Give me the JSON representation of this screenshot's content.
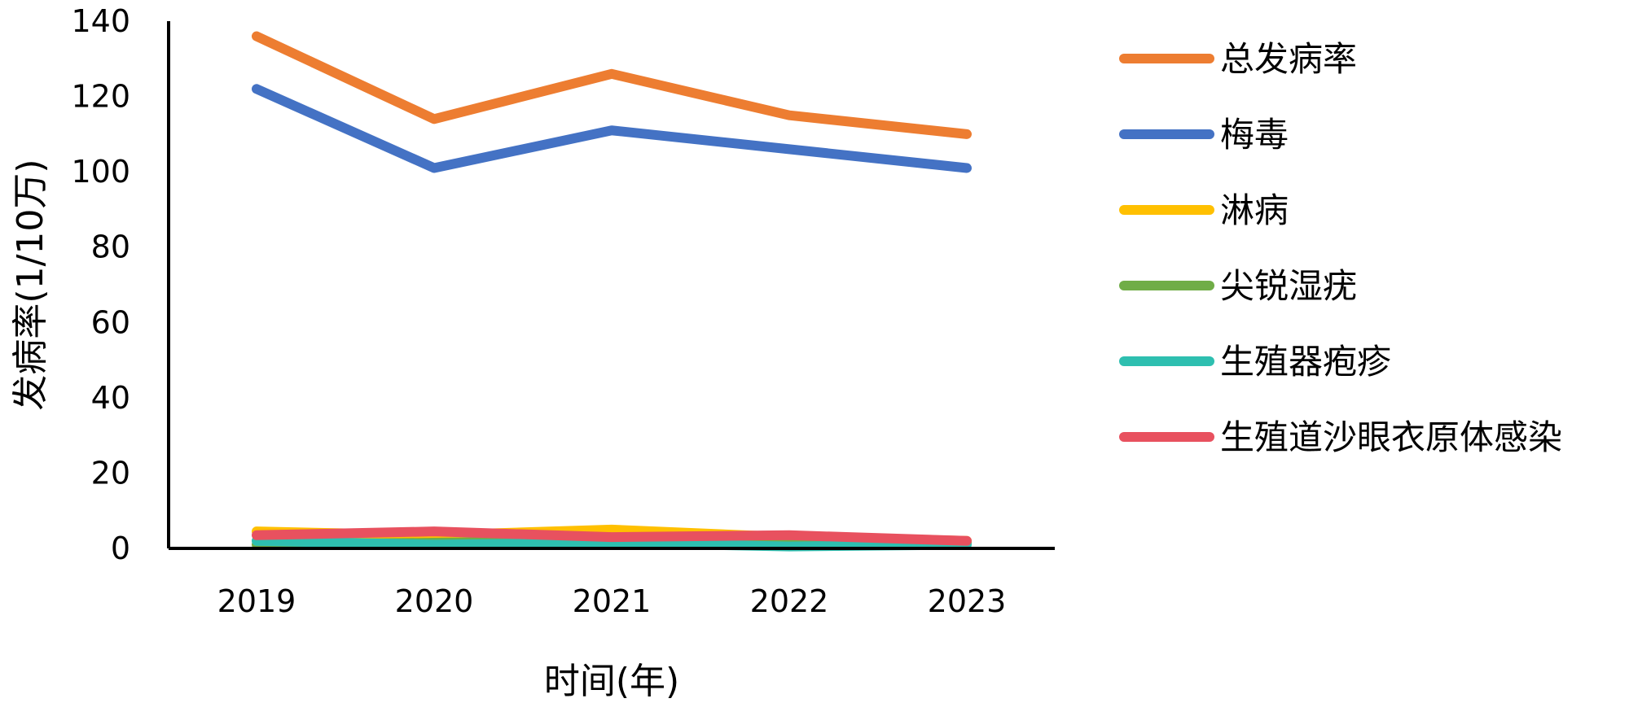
{
  "chart_data": {
    "type": "line",
    "title": "",
    "xlabel": "时间(年)",
    "ylabel": "发病率(1/10万)",
    "categories": [
      "2019",
      "2020",
      "2021",
      "2022",
      "2023"
    ],
    "ylim": [
      0,
      140
    ],
    "yticks": [
      "0",
      "20",
      "40",
      "60",
      "80",
      "100",
      "120",
      "140"
    ],
    "grid": false,
    "legend_position": "right",
    "series": [
      {
        "name": "总发病率",
        "color": "#ED7D31",
        "values": [
          136,
          114,
          126,
          115,
          110
        ]
      },
      {
        "name": "梅毒",
        "color": "#4472C4",
        "values": [
          122,
          101,
          111,
          106,
          101
        ]
      },
      {
        "name": "淋病",
        "color": "#FFC000",
        "values": [
          4.5,
          3.5,
          5,
          3,
          2
        ]
      },
      {
        "name": "尖锐湿疣",
        "color": "#70AD47",
        "values": [
          1,
          1.5,
          2,
          1.5,
          1.5
        ]
      },
      {
        "name": "生殖器疱疹",
        "color": "#2EBFB0",
        "values": [
          2,
          1,
          1.5,
          0.5,
          1
        ]
      },
      {
        "name": "生殖道沙眼衣原体感染",
        "color": "#E8515F",
        "values": [
          3.5,
          4.5,
          3,
          3.5,
          2
        ]
      }
    ]
  }
}
